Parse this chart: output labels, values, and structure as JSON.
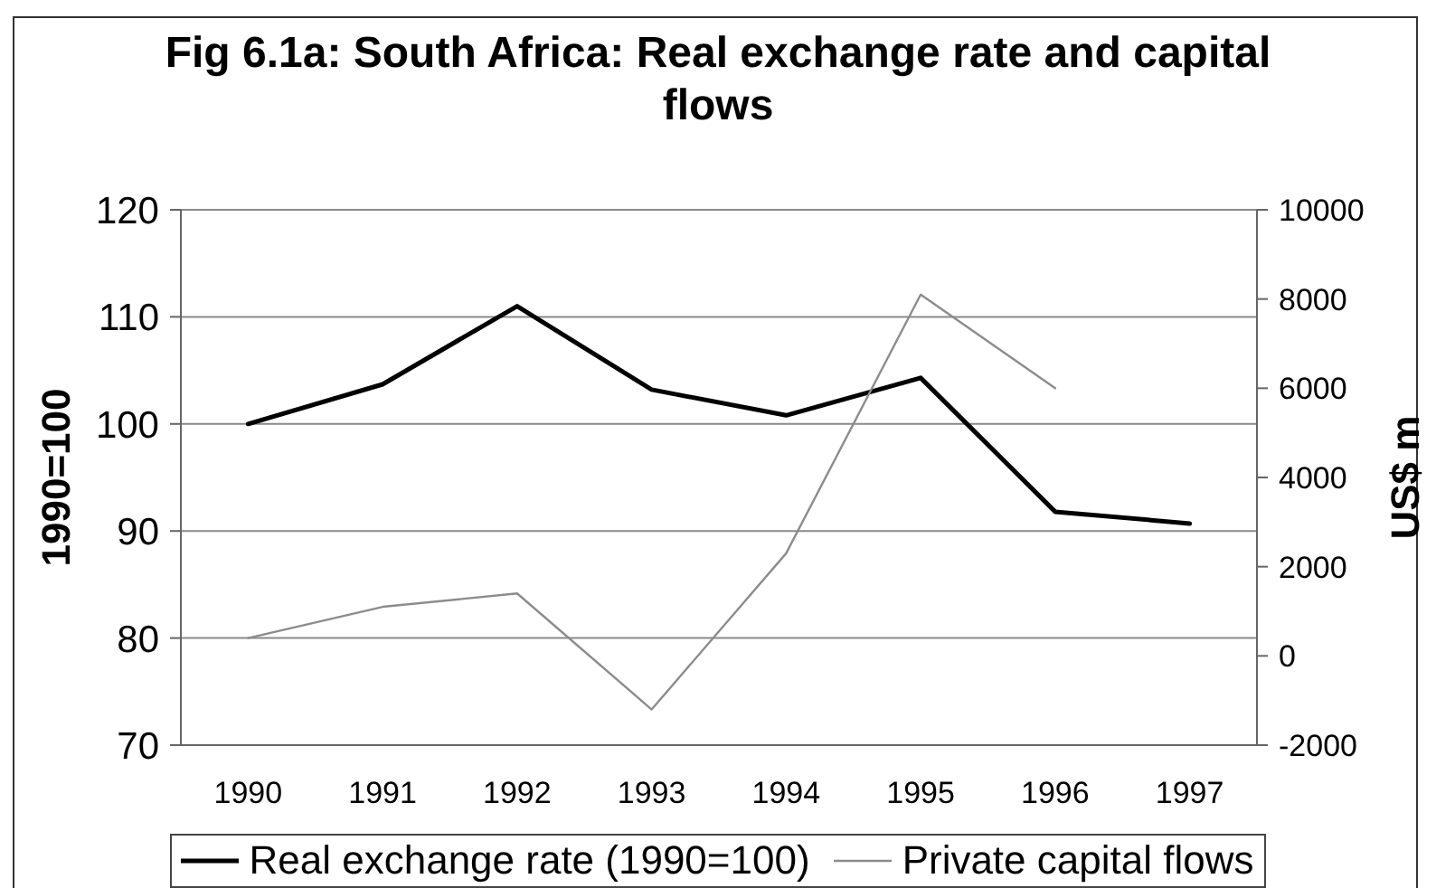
{
  "chart_data": {
    "type": "line",
    "title": "Fig 6.1a: South Africa: Real exchange rate and capital flows",
    "ylabel": "1990=100",
    "y2label": "US$ m",
    "categories": [
      "1990",
      "1991",
      "1992",
      "1993",
      "1994",
      "1995",
      "1996",
      "1997"
    ],
    "series": [
      {
        "name": "Real exchange rate (1990=100)",
        "color": "#000000",
        "values": [
          100,
          103.7,
          111,
          103.2,
          100.8,
          104.3,
          91.8,
          90.7
        ]
      },
      {
        "name": "Private capital flows",
        "color": "#8c8c8c",
        "axis": "y2",
        "values": [
          400,
          1100,
          1400,
          -1200,
          2300,
          8100,
          6000,
          null
        ]
      }
    ],
    "ylim": [
      70,
      120
    ],
    "yticks": [
      70,
      80,
      90,
      100,
      110,
      120
    ],
    "y2lim": [
      -2000,
      10000
    ],
    "y2ticks": [
      -2000,
      0,
      2000,
      4000,
      6000,
      8000,
      10000
    ],
    "grid": "y",
    "legend": "bottom",
    "marker": "none",
    "line_style": "solid"
  }
}
